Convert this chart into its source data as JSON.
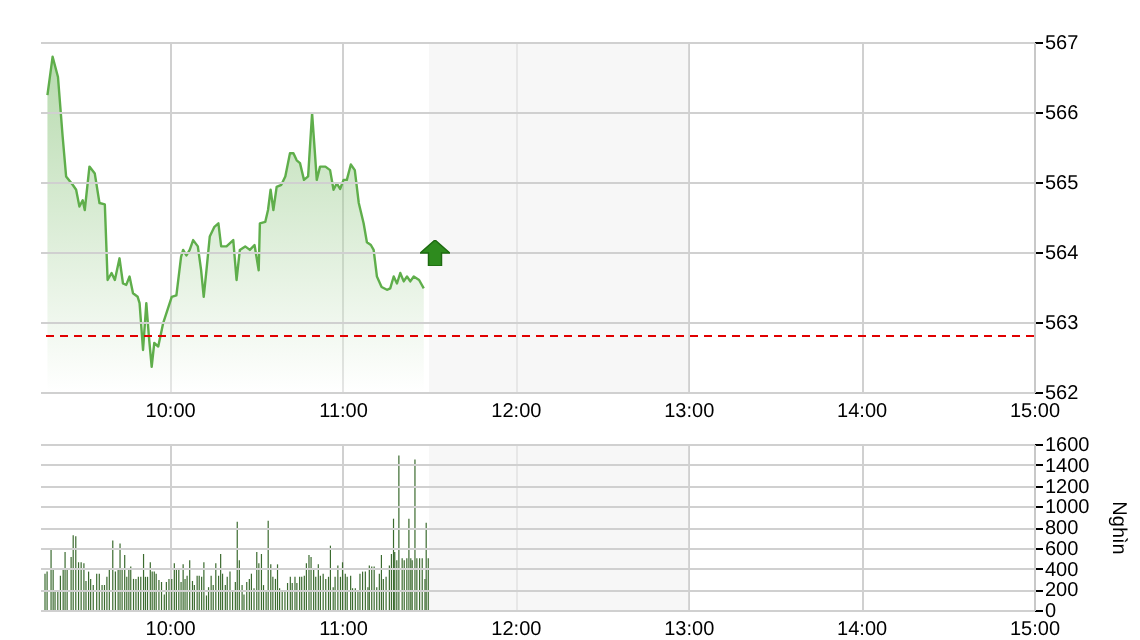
{
  "chart_data": [
    {
      "type": "area",
      "color": "#5fae4b",
      "xlim": [
        9.25,
        15
      ],
      "ylim": [
        562,
        567
      ],
      "yticks": [
        562,
        563,
        564,
        565,
        566,
        567
      ],
      "grid": true,
      "xticks": [
        {
          "value": 10,
          "label": "10:00"
        },
        {
          "value": 11,
          "label": "11:00"
        },
        {
          "value": 12,
          "label": "12:00"
        },
        {
          "value": 13,
          "label": "13:00"
        },
        {
          "value": 14,
          "label": "14:00"
        },
        {
          "value": 15,
          "label": "15:00"
        }
      ],
      "ref_lines": [
        {
          "axis": "y",
          "value": 562.8,
          "color": "#e00000",
          "line_style": "dashed"
        }
      ],
      "bands": [
        {
          "axis": "x",
          "from": 11.5,
          "to": 13,
          "color": "#f2f2f2"
        }
      ],
      "x": [
        9.293,
        9.323,
        9.354,
        9.381,
        9.401,
        9.439,
        9.459,
        9.478,
        9.497,
        9.509,
        9.536,
        9.567,
        9.594,
        9.625,
        9.641,
        9.664,
        9.683,
        9.71,
        9.73,
        9.749,
        9.768,
        9.788,
        9.815,
        9.826,
        9.846,
        9.865,
        9.88,
        9.896,
        9.911,
        9.934,
        9.962,
        10.012,
        10.039,
        10.066,
        10.078,
        10.097,
        10.116,
        10.136,
        10.163,
        10.182,
        10.197,
        10.213,
        10.232,
        10.259,
        10.282,
        10.298,
        10.329,
        10.368,
        10.387,
        10.406,
        10.437,
        10.464,
        10.491,
        10.515,
        10.522,
        10.553,
        10.569,
        10.584,
        10.6,
        10.619,
        10.646,
        10.669,
        10.696,
        10.716,
        10.735,
        10.754,
        10.777,
        10.801,
        10.824,
        10.839,
        10.851,
        10.87,
        10.901,
        10.928,
        10.948,
        10.967,
        10.986,
        11.006,
        11.025,
        11.048,
        11.071,
        11.094,
        11.122,
        11.141,
        11.164,
        11.18,
        11.199,
        11.226,
        11.257,
        11.276,
        11.296,
        11.315,
        11.334,
        11.354,
        11.373,
        11.392,
        11.412,
        11.443,
        11.47
      ],
      "values": [
        566.24,
        566.79,
        566.5,
        565.65,
        565.08,
        564.96,
        564.89,
        564.65,
        564.74,
        564.6,
        565.22,
        565.12,
        564.7,
        564.68,
        563.6,
        563.7,
        563.6,
        563.91,
        563.55,
        563.53,
        563.65,
        563.41,
        563.36,
        563.27,
        562.6,
        563.27,
        562.79,
        562.36,
        562.7,
        562.65,
        562.98,
        563.36,
        563.38,
        563.93,
        564.03,
        563.95,
        564.03,
        564.17,
        564.08,
        563.74,
        563.36,
        563.74,
        564.22,
        564.36,
        564.41,
        564.08,
        564.08,
        564.17,
        563.6,
        564.03,
        564.08,
        564.03,
        564.1,
        563.74,
        564.41,
        564.43,
        564.6,
        564.89,
        564.6,
        564.93,
        564.96,
        565.08,
        565.41,
        565.41,
        565.31,
        565.27,
        565.03,
        565.08,
        565.98,
        565.46,
        565.03,
        565.22,
        565.22,
        565.17,
        564.89,
        564.98,
        564.9,
        565.03,
        565.03,
        565.25,
        565.17,
        564.7,
        564.41,
        564.14,
        564.1,
        564.03,
        563.65,
        563.5,
        563.46,
        563.48,
        563.65,
        563.55,
        563.7,
        563.58,
        563.65,
        563.58,
        563.65,
        563.6,
        563.48
      ]
    },
    {
      "type": "bar",
      "color": "#3b6b2f",
      "xlim": [
        9.25,
        15
      ],
      "ylim": [
        0,
        1600
      ],
      "yticks": [
        0,
        200,
        400,
        600,
        800,
        1000,
        1200,
        1400,
        1600
      ],
      "ylabel": "Nghìn",
      "grid": true,
      "xticks": [
        {
          "value": 10,
          "label": "10:00"
        },
        {
          "value": 11,
          "label": "11:00"
        },
        {
          "value": 12,
          "label": "12:00"
        },
        {
          "value": 13,
          "label": "13:00"
        },
        {
          "value": 14,
          "label": "14:00"
        },
        {
          "value": 15,
          "label": "15:00"
        }
      ],
      "bands": [
        {
          "axis": "x",
          "from": 11.5,
          "to": 13,
          "color": "#f2f2f2"
        }
      ],
      "x": [
        9.279,
        9.291,
        9.314,
        9.326,
        9.337,
        9.353,
        9.368,
        9.384,
        9.395,
        9.407,
        9.43,
        9.442,
        9.457,
        9.473,
        9.488,
        9.504,
        9.516,
        9.531,
        9.543,
        9.558,
        9.578,
        9.593,
        9.609,
        9.623,
        9.637,
        9.651,
        9.671,
        9.686,
        9.702,
        9.713,
        9.725,
        9.74,
        9.752,
        9.764,
        9.775,
        9.791,
        9.805,
        9.819,
        9.833,
        9.849,
        9.86,
        9.872,
        9.888,
        9.899,
        9.911,
        9.922,
        9.938,
        9.953,
        9.969,
        9.981,
        9.996,
        10.012,
        10.027,
        10.039,
        10.053,
        10.066,
        10.078,
        10.089,
        10.101,
        10.116,
        10.132,
        10.143,
        10.159,
        10.171,
        10.185,
        10.198,
        10.213,
        10.225,
        10.24,
        10.252,
        10.267,
        10.283,
        10.295,
        10.306,
        10.322,
        10.333,
        10.349,
        10.364,
        10.38,
        10.391,
        10.403,
        10.419,
        10.43,
        10.446,
        10.461,
        10.473,
        10.488,
        10.504,
        10.516,
        10.531,
        10.543,
        10.558,
        10.57,
        10.585,
        10.597,
        10.612,
        10.624,
        10.636,
        10.651,
        10.667,
        10.682,
        10.698,
        10.709,
        10.725,
        10.736,
        10.752,
        10.764,
        10.779,
        10.791,
        10.806,
        10.818,
        10.833,
        10.845,
        10.86,
        10.872,
        10.888,
        10.903,
        10.919,
        10.93,
        10.946,
        10.957,
        10.973,
        10.988,
        11.0,
        11.016,
        11.027,
        11.047,
        11.058,
        11.074,
        11.089,
        11.101,
        11.116,
        11.132,
        11.147,
        11.155,
        11.169,
        11.183,
        11.198,
        11.213,
        11.225,
        11.236,
        11.252,
        11.271,
        11.283,
        11.295,
        11.302,
        11.314,
        11.326,
        11.345,
        11.357,
        11.372,
        11.384,
        11.395,
        11.403,
        11.419,
        11.43,
        11.446,
        11.461,
        11.477,
        11.484,
        11.496
      ],
      "values": [
        350,
        370,
        590,
        400,
        190,
        190,
        330,
        400,
        560,
        400,
        510,
        720,
        710,
        460,
        460,
        450,
        280,
        370,
        300,
        240,
        350,
        350,
        240,
        240,
        320,
        400,
        670,
        370,
        400,
        640,
        400,
        530,
        320,
        400,
        420,
        300,
        300,
        320,
        320,
        540,
        320,
        320,
        460,
        370,
        370,
        350,
        290,
        270,
        150,
        270,
        300,
        300,
        450,
        400,
        400,
        270,
        440,
        300,
        330,
        480,
        280,
        240,
        330,
        330,
        320,
        460,
        140,
        220,
        330,
        240,
        450,
        330,
        540,
        350,
        240,
        320,
        370,
        190,
        270,
        850,
        480,
        240,
        150,
        270,
        300,
        350,
        210,
        560,
        450,
        540,
        240,
        190,
        860,
        440,
        320,
        300,
        440,
        210,
        190,
        190,
        260,
        320,
        260,
        320,
        260,
        320,
        320,
        330,
        450,
        530,
        510,
        400,
        320,
        440,
        330,
        350,
        300,
        320,
        620,
        220,
        320,
        430,
        320,
        460,
        350,
        320,
        330,
        210,
        210,
        190,
        350,
        370,
        370,
        220,
        430,
        420,
        420,
        220,
        350,
        530,
        300,
        320,
        430,
        540,
        880,
        560,
        480,
        1490,
        500,
        480,
        500,
        880,
        500,
        480,
        1450,
        500,
        500,
        500,
        300,
        840,
        500
      ]
    }
  ]
}
